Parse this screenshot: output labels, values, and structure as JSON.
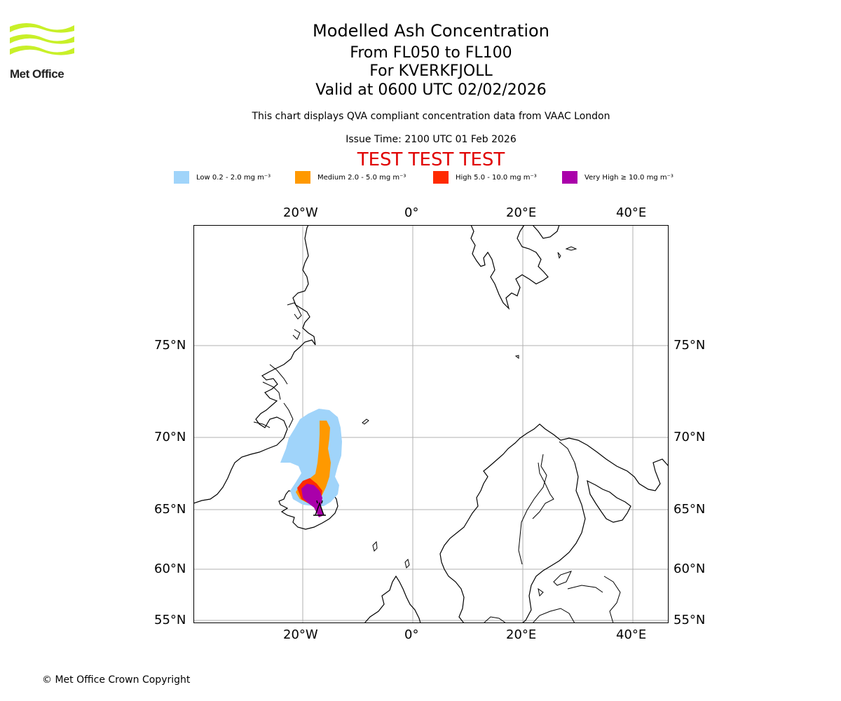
{
  "header": {
    "title": "Modelled Ash Concentration",
    "levels": "From FL050 to FL100",
    "volcano": "For KVERKFJOLL",
    "valid": "Valid at 0600 UTC 02/02/2026",
    "note": "This chart displays QVA compliant concentration data from VAAC London",
    "issue": "Issue Time: 2100 UTC 01 Feb 2026",
    "test_banner": "TEST TEST TEST"
  },
  "logo": {
    "text": "Met Office",
    "color": "#c8f028"
  },
  "legend": [
    {
      "label": "Low 0.2 - 2.0 mg m⁻³",
      "color": "#a0d4fa"
    },
    {
      "label": "Medium 2.0 - 5.0 mg m⁻³",
      "color": "#ff9900"
    },
    {
      "label": "High 5.0 - 10.0 mg m⁻³",
      "color": "#ff2a00"
    },
    {
      "label": "Very High ≥ 10.0 mg m⁻³",
      "color": "#aa00aa"
    }
  ],
  "map": {
    "lon_ticks": [
      "20°W",
      "0°",
      "20°E",
      "40°E"
    ],
    "lat_ticks": [
      "75°N",
      "70°N",
      "65°N",
      "60°N",
      "55°N"
    ],
    "volcano_marker": "KVERKFJOLL"
  },
  "footer": {
    "copyright": "© Met Office Crown Copyright"
  }
}
